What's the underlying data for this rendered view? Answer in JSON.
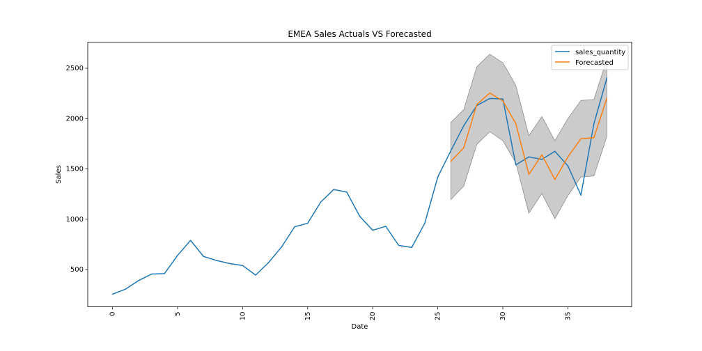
{
  "chart_data": {
    "type": "line",
    "title": "EMEA Sales Actuals VS Forecasted",
    "xlabel": "Date",
    "ylabel": "Sales",
    "xlim": [
      -1.9,
      39.9
    ],
    "ylim": [
      130,
      2760
    ],
    "x_ticks": [
      0,
      5,
      10,
      15,
      20,
      25,
      30,
      35
    ],
    "y_ticks": [
      500,
      1000,
      1500,
      2000,
      2500
    ],
    "grid": false,
    "legend_position": "top-right",
    "series": [
      {
        "name": "sales_quantity",
        "color": "#1f77b4",
        "x": [
          0,
          1,
          2,
          3,
          4,
          5,
          6,
          7,
          8,
          9,
          10,
          11,
          12,
          13,
          14,
          15,
          16,
          17,
          18,
          19,
          20,
          21,
          22,
          23,
          24,
          25,
          26,
          27,
          28,
          29,
          30,
          31,
          32,
          33,
          34,
          35,
          36,
          37,
          38
        ],
        "y": [
          255,
          305,
          390,
          455,
          460,
          640,
          790,
          630,
          590,
          560,
          540,
          445,
          570,
          725,
          925,
          960,
          1170,
          1295,
          1270,
          1030,
          890,
          930,
          740,
          720,
          960,
          1420,
          1680,
          1930,
          2130,
          2200,
          2195,
          1540,
          1620,
          1595,
          1675,
          1530,
          1240,
          1950,
          2405
        ]
      },
      {
        "name": "Forecasted",
        "color": "#ff7f0e",
        "x": [
          26,
          27,
          28,
          29,
          30,
          31,
          32,
          33,
          34,
          35,
          36,
          37,
          38
        ],
        "y": [
          1575,
          1710,
          2140,
          2255,
          2175,
          1950,
          1445,
          1640,
          1395,
          1620,
          1800,
          1810,
          2205
        ]
      }
    ],
    "confidence_band": {
      "color": "#a9a9a9",
      "x": [
        26,
        27,
        28,
        29,
        30,
        31,
        32,
        33,
        34,
        35,
        36,
        37,
        38
      ],
      "lower": [
        1195,
        1330,
        1745,
        1870,
        1780,
        1560,
        1060,
        1255,
        1005,
        1235,
        1420,
        1430,
        1825
      ],
      "upper": [
        1960,
        2090,
        2515,
        2640,
        2555,
        2330,
        1830,
        2020,
        1780,
        2000,
        2180,
        2190,
        2590
      ]
    }
  }
}
